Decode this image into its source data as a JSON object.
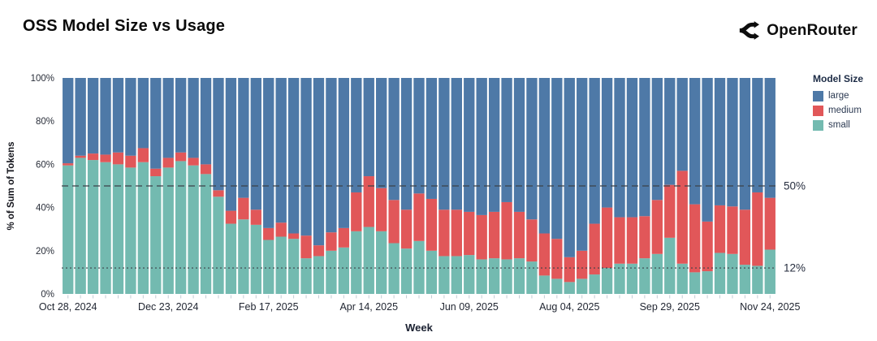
{
  "header": {
    "title": "OSS Model Size vs Usage",
    "brand": {
      "name": "OpenRouter",
      "icon": "openrouter-arrows-icon"
    }
  },
  "chart_data": {
    "type": "bar",
    "stacked": true,
    "normalized_to_100": true,
    "title": "OSS Model Size vs Usage",
    "xlabel": "Week",
    "ylabel": "% of Sum of Tokens",
    "ylim": [
      0,
      100
    ],
    "grid": false,
    "y_ticks": [
      {
        "value": 0,
        "label": "0%"
      },
      {
        "value": 20,
        "label": "20%"
      },
      {
        "value": 40,
        "label": "40%"
      },
      {
        "value": 60,
        "label": "60%"
      },
      {
        "value": 80,
        "label": "80%"
      },
      {
        "value": 100,
        "label": "100%"
      }
    ],
    "x_tick_labels": [
      "Oct 28, 2024",
      "Dec 23, 2024",
      "Feb 17, 2025",
      "Apr 14, 2025",
      "Jun 09, 2025",
      "Aug 04, 2025",
      "Sep 29, 2025",
      "Nov 24, 2025"
    ],
    "x_tick_indices": [
      0,
      8,
      16,
      24,
      32,
      40,
      48,
      56
    ],
    "legend": {
      "title": "Model Size",
      "position": "right",
      "entries": [
        "large",
        "medium",
        "small"
      ]
    },
    "colors": {
      "large": "#4e79a7",
      "medium": "#e15759",
      "small": "#73bab0"
    },
    "reference_lines": [
      {
        "value": 50,
        "style": "dashed",
        "label": "50%"
      },
      {
        "value": 12,
        "style": "dotted",
        "label": "12%"
      }
    ],
    "categories": [
      "Oct 28, 2024",
      "Nov 04, 2024",
      "Nov 11, 2024",
      "Nov 18, 2024",
      "Nov 25, 2024",
      "Dec 02, 2024",
      "Dec 09, 2024",
      "Dec 16, 2024",
      "Dec 23, 2024",
      "Dec 30, 2024",
      "Jan 06, 2025",
      "Jan 13, 2025",
      "Jan 20, 2025",
      "Jan 27, 2025",
      "Feb 03, 2025",
      "Feb 10, 2025",
      "Feb 17, 2025",
      "Feb 24, 2025",
      "Mar 03, 2025",
      "Mar 10, 2025",
      "Mar 17, 2025",
      "Mar 24, 2025",
      "Mar 31, 2025",
      "Apr 07, 2025",
      "Apr 14, 2025",
      "Apr 21, 2025",
      "Apr 28, 2025",
      "May 05, 2025",
      "May 12, 2025",
      "May 19, 2025",
      "May 26, 2025",
      "Jun 02, 2025",
      "Jun 09, 2025",
      "Jun 16, 2025",
      "Jun 23, 2025",
      "Jun 30, 2025",
      "Jul 07, 2025",
      "Jul 14, 2025",
      "Jul 21, 2025",
      "Jul 28, 2025",
      "Aug 04, 2025",
      "Aug 11, 2025",
      "Aug 18, 2025",
      "Aug 25, 2025",
      "Sep 01, 2025",
      "Sep 08, 2025",
      "Sep 15, 2025",
      "Sep 22, 2025",
      "Sep 29, 2025",
      "Oct 06, 2025",
      "Oct 13, 2025",
      "Oct 20, 2025",
      "Oct 27, 2025",
      "Nov 03, 2025",
      "Nov 10, 2025",
      "Nov 17, 2025",
      "Nov 24, 2025"
    ],
    "series": [
      {
        "name": "small",
        "values": [
          59.5,
          63,
          62,
          61,
          60,
          58.5,
          61,
          54.5,
          58.5,
          61.5,
          59.5,
          55.5,
          45,
          32.5,
          34.5,
          32,
          25,
          26.5,
          25.5,
          16.5,
          17.5,
          20,
          21.5,
          29,
          31,
          29,
          23.5,
          21,
          24.5,
          20,
          17.5,
          17.5,
          18,
          16,
          16.5,
          16,
          16.5,
          15,
          8.5,
          7,
          5.5,
          7,
          9,
          12,
          14,
          14,
          16.5,
          18.5,
          26,
          14,
          10,
          10.5,
          19,
          18.5,
          13.5,
          13,
          20.5
        ]
      },
      {
        "name": "medium",
        "values": [
          1,
          1,
          3,
          3.5,
          5.5,
          5.5,
          6.5,
          3.5,
          4.5,
          4,
          3.5,
          4.5,
          3,
          6,
          10,
          7,
          5.5,
          6.5,
          2.5,
          10.5,
          5,
          8.5,
          9,
          18,
          23.5,
          20,
          20,
          18,
          22,
          24,
          21.5,
          21.5,
          20,
          20.5,
          21.5,
          26.5,
          21.5,
          19.5,
          19.5,
          18.5,
          11.5,
          13,
          23.5,
          28,
          21.5,
          21.5,
          19.5,
          25,
          24.5,
          43,
          31.5,
          23,
          22,
          22,
          25.5,
          34,
          24
        ]
      },
      {
        "name": "large",
        "values": [
          39.5,
          36,
          35,
          35.5,
          34.5,
          36,
          32.5,
          42,
          37,
          34.5,
          37,
          40,
          52,
          61.5,
          55.5,
          61,
          69.5,
          67,
          72,
          73,
          77.5,
          71.5,
          69.5,
          53,
          45.5,
          51,
          56.5,
          61,
          53.5,
          56,
          61,
          61,
          62,
          63.5,
          62,
          57.5,
          62,
          65.5,
          72,
          74.5,
          83,
          80,
          67.5,
          60,
          64.5,
          64.5,
          64,
          56.5,
          49.5,
          43,
          58.5,
          66.5,
          59,
          59.5,
          61,
          53,
          55.5
        ]
      }
    ]
  }
}
